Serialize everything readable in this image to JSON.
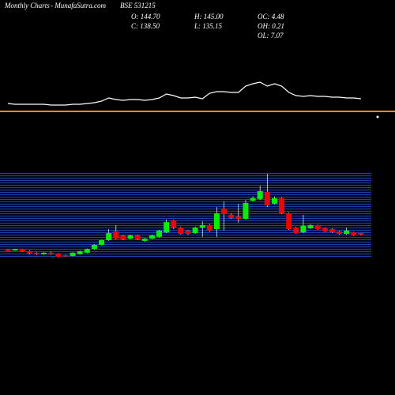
{
  "chart_data": {
    "type": "candlestick",
    "title": "Monthly Charts",
    "source": "- MunafaSutra.com",
    "symbol": "BSE 531215",
    "stats": [
      "O: 144.70",
      "H: 145.00",
      "OC: 4.48",
      "C: 138.50",
      "L: 135.15",
      "OH: 0.21",
      "OL: 7.07"
    ],
    "up_color": "#00ee00",
    "down_color": "#ee0000",
    "ylim": [
      50,
      380
    ],
    "open": [
      78,
      75,
      81,
      72,
      66,
      60,
      66,
      63,
      56,
      53,
      60,
      66,
      81,
      97,
      116,
      151,
      135,
      122,
      135,
      113,
      122,
      129,
      147,
      195,
      166,
      154,
      144,
      166,
      176,
      160,
      242,
      217,
      210,
      201,
      273,
      280,
      308,
      261,
      283,
      223,
      166,
      147,
      163,
      176,
      163,
      160,
      151,
      141,
      147,
      144.7
    ],
    "high": [
      80,
      82,
      82,
      75,
      68,
      68,
      70,
      65,
      58,
      68,
      75,
      83,
      100,
      118,
      160,
      176,
      138,
      138,
      138,
      125,
      138,
      157,
      198,
      198,
      170,
      157,
      170,
      191,
      180,
      248,
      270,
      223,
      261,
      276,
      290,
      333,
      380,
      290,
      286,
      226,
      170,
      217,
      180,
      178,
      166,
      163,
      154,
      166,
      150,
      145
    ],
    "low": [
      72,
      74,
      70,
      60,
      57,
      58,
      57,
      48,
      50,
      52,
      58,
      64,
      78,
      95,
      113,
      119,
      116,
      119,
      116,
      110,
      120,
      126,
      144,
      160,
      138,
      138,
      141,
      129,
      150,
      129,
      154,
      200,
      185,
      198,
      270,
      276,
      248,
      258,
      220,
      157,
      141,
      144,
      160,
      157,
      148,
      144,
      138,
      138,
      132,
      135.15
    ],
    "close": [
      75,
      81,
      72,
      63,
      60,
      66,
      60,
      50,
      53,
      66,
      72,
      81,
      97,
      116,
      144,
      122,
      119,
      135,
      119,
      122,
      135,
      154,
      188,
      166,
      141,
      141,
      166,
      176,
      154,
      223,
      220,
      204,
      201,
      264,
      283,
      311,
      254,
      283,
      223,
      160,
      144,
      173,
      176,
      160,
      151,
      147,
      141,
      154,
      135,
      138.5
    ],
    "overlay": {
      "type": "line",
      "color": "#ffffff",
      "values": [
        14,
        13,
        13,
        13,
        13,
        13,
        12,
        12,
        12,
        13,
        13,
        14,
        15,
        17,
        21,
        19,
        18,
        19,
        19,
        18,
        19,
        21,
        26,
        24,
        21,
        21,
        22,
        20,
        27,
        29,
        29,
        28,
        28,
        36,
        39,
        41,
        36,
        39,
        36,
        28,
        24,
        23,
        24,
        23,
        23,
        22,
        22,
        21,
        21,
        20
      ],
      "ylim": [
        0,
        45
      ],
      "reference_line": 4,
      "reference_color": "#ff8c1a"
    }
  }
}
